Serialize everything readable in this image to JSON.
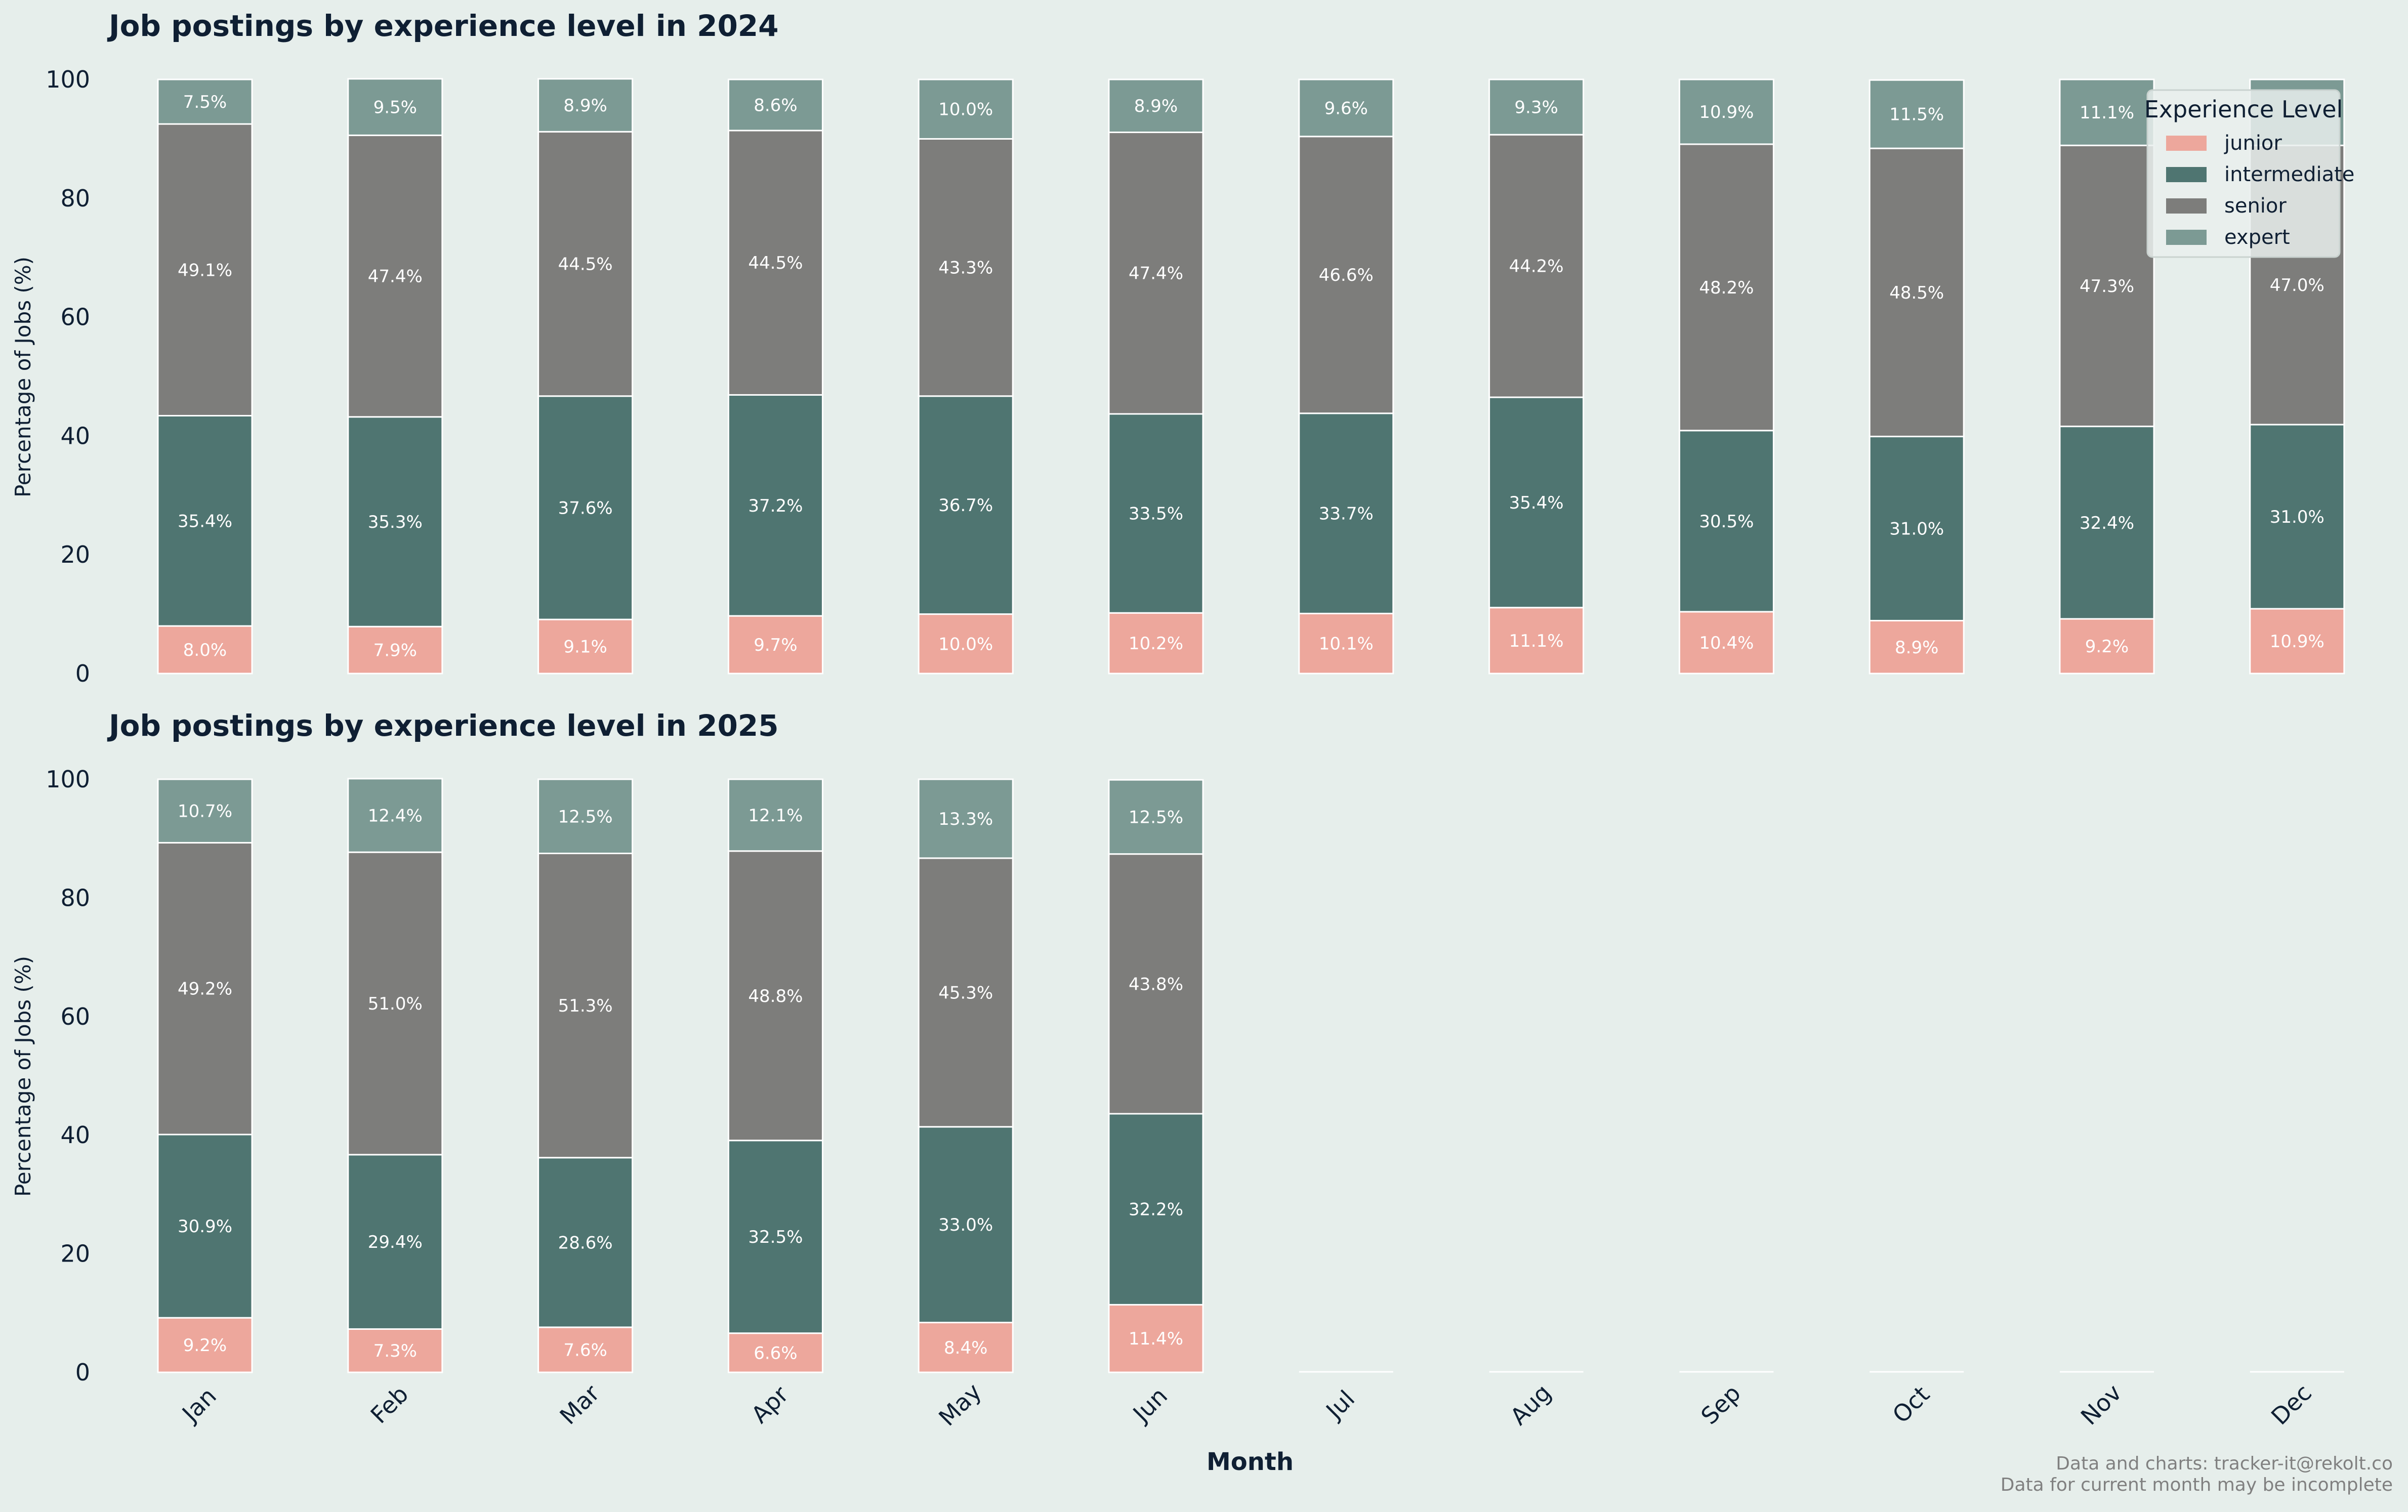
{
  "colors": {
    "background": "#e6eeeb",
    "junior": "#eda79c",
    "intermediate": "#4f7571",
    "senior": "#7d7d7b",
    "expert": "#7c9a94",
    "title": "#0f1f33",
    "footnote": "#808080"
  },
  "chart_data": [
    {
      "type": "bar",
      "stacked": true,
      "title": "Job postings by experience level in 2024",
      "xlabel": "",
      "ylabel": "Percentage of Jobs (%)",
      "ylim": [
        0,
        100
      ],
      "yticks": [
        "0",
        "20",
        "40",
        "60",
        "80",
        "100"
      ],
      "categories": [
        "Jan",
        "Feb",
        "Mar",
        "Apr",
        "May",
        "Jun",
        "Jul",
        "Aug",
        "Sep",
        "Oct",
        "Nov",
        "Dec"
      ],
      "series": [
        {
          "name": "junior",
          "values": [
            8.0,
            7.9,
            9.1,
            9.7,
            10.0,
            10.2,
            10.1,
            11.1,
            10.4,
            8.9,
            9.2,
            10.9
          ],
          "labels": [
            "8.0%",
            "7.9%",
            "9.1%",
            "9.7%",
            "10.0%",
            "10.2%",
            "10.1%",
            "11.1%",
            "10.4%",
            "8.9%",
            "9.2%",
            "10.9%"
          ]
        },
        {
          "name": "intermediate",
          "values": [
            35.4,
            35.3,
            37.6,
            37.2,
            36.7,
            33.5,
            33.7,
            35.4,
            30.5,
            31.0,
            32.4,
            31.0
          ],
          "labels": [
            "35.4%",
            "35.3%",
            "37.6%",
            "37.2%",
            "36.7%",
            "33.5%",
            "33.7%",
            "35.4%",
            "30.5%",
            "31.0%",
            "32.4%",
            "31.0%"
          ]
        },
        {
          "name": "senior",
          "values": [
            49.1,
            47.4,
            44.5,
            44.5,
            43.3,
            47.4,
            46.6,
            44.2,
            48.2,
            48.5,
            47.3,
            47.0
          ],
          "labels": [
            "49.1%",
            "47.4%",
            "44.5%",
            "44.5%",
            "43.3%",
            "47.4%",
            "46.6%",
            "44.2%",
            "48.2%",
            "48.5%",
            "47.3%",
            "47.0%"
          ]
        },
        {
          "name": "expert",
          "values": [
            7.5,
            9.5,
            8.9,
            8.6,
            10.0,
            8.9,
            9.6,
            9.3,
            10.9,
            11.5,
            11.1,
            11.1
          ],
          "labels": [
            "7.5%",
            "9.5%",
            "8.9%",
            "8.6%",
            "10.0%",
            "8.9%",
            "9.6%",
            "9.3%",
            "10.9%",
            "11.5%",
            "11.1%",
            ""
          ]
        }
      ],
      "legend": {
        "title": "Experience Level",
        "entries": [
          "junior",
          "intermediate",
          "senior",
          "expert"
        ],
        "placement": "top-right"
      }
    },
    {
      "type": "bar",
      "stacked": true,
      "title": "Job postings by experience level in 2025",
      "xlabel": "Month",
      "ylabel": "Percentage of Jobs (%)",
      "ylim": [
        0,
        100
      ],
      "yticks": [
        "0",
        "20",
        "40",
        "60",
        "80",
        "100"
      ],
      "categories": [
        "Jan",
        "Feb",
        "Mar",
        "Apr",
        "May",
        "Jun",
        "Jul",
        "Aug",
        "Sep",
        "Oct",
        "Nov",
        "Dec"
      ],
      "series": [
        {
          "name": "junior",
          "values": [
            9.2,
            7.3,
            7.6,
            6.6,
            8.4,
            11.4,
            0,
            0,
            0,
            0,
            0,
            0
          ],
          "labels": [
            "9.2%",
            "7.3%",
            "7.6%",
            "6.6%",
            "8.4%",
            "11.4%",
            "",
            "",
            "",
            "",
            "",
            ""
          ]
        },
        {
          "name": "intermediate",
          "values": [
            30.9,
            29.4,
            28.6,
            32.5,
            33.0,
            32.2,
            0,
            0,
            0,
            0,
            0,
            0
          ],
          "labels": [
            "30.9%",
            "29.4%",
            "28.6%",
            "32.5%",
            "33.0%",
            "32.2%",
            "",
            "",
            "",
            "",
            "",
            ""
          ]
        },
        {
          "name": "senior",
          "values": [
            49.2,
            51.0,
            51.3,
            48.8,
            45.3,
            43.8,
            0,
            0,
            0,
            0,
            0,
            0
          ],
          "labels": [
            "49.2%",
            "51.0%",
            "51.3%",
            "48.8%",
            "45.3%",
            "43.8%",
            "",
            "",
            "",
            "",
            "",
            ""
          ]
        },
        {
          "name": "expert",
          "values": [
            10.7,
            12.4,
            12.5,
            12.1,
            13.3,
            12.5,
            0,
            0,
            0,
            0,
            0,
            0
          ],
          "labels": [
            "10.7%",
            "12.4%",
            "12.5%",
            "12.1%",
            "13.3%",
            "12.5%",
            "",
            "",
            "",
            "",
            "",
            ""
          ]
        }
      ]
    }
  ],
  "footnote": {
    "line1": "Data and charts: tracker-it@rekolt.co",
    "line2": "Data for current month may be incomplete"
  }
}
